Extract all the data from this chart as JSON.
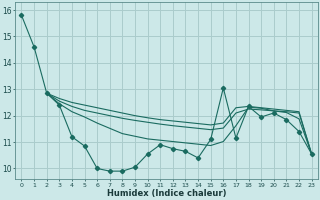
{
  "title": "",
  "xlabel": "Humidex (Indice chaleur)",
  "ylabel": "",
  "background_color": "#cce8e8",
  "grid_color": "#aacccc",
  "line_color": "#1a6b60",
  "xlim": [
    -0.5,
    23.5
  ],
  "ylim": [
    9.6,
    16.3
  ],
  "yticks": [
    10,
    11,
    12,
    13,
    14,
    15,
    16
  ],
  "xticks": [
    0,
    1,
    2,
    3,
    4,
    5,
    6,
    7,
    8,
    9,
    10,
    11,
    12,
    13,
    14,
    15,
    16,
    17,
    18,
    19,
    20,
    21,
    22,
    23
  ],
  "series": [
    {
      "x": [
        0,
        1,
        2,
        3,
        4,
        5,
        6,
        7,
        8,
        9,
        10,
        11,
        12,
        13,
        14,
        15,
        16,
        17,
        18,
        19,
        20,
        21,
        22,
        23
      ],
      "y": [
        15.8,
        14.6,
        12.85,
        12.4,
        11.2,
        10.85,
        10.0,
        9.9,
        9.9,
        10.05,
        10.55,
        10.9,
        10.75,
        10.65,
        10.4,
        11.1,
        13.05,
        11.15,
        12.35,
        11.95,
        12.1,
        11.85,
        11.4,
        10.55
      ],
      "marker": "D",
      "markersize": 2.2
    },
    {
      "x": [
        2,
        3,
        4,
        5,
        6,
        7,
        8,
        9,
        10,
        11,
        12,
        13,
        14,
        15,
        16,
        17,
        18,
        19,
        20,
        21,
        22,
        23
      ],
      "y": [
        12.85,
        12.65,
        12.5,
        12.4,
        12.3,
        12.2,
        12.1,
        12.0,
        11.92,
        11.85,
        11.8,
        11.75,
        11.7,
        11.65,
        11.72,
        12.3,
        12.35,
        12.3,
        12.25,
        12.2,
        12.15,
        10.55
      ],
      "marker": null,
      "markersize": 0
    },
    {
      "x": [
        2,
        3,
        4,
        5,
        6,
        7,
        8,
        9,
        10,
        11,
        12,
        13,
        14,
        15,
        16,
        17,
        18,
        19,
        20,
        21,
        22,
        23
      ],
      "y": [
        12.85,
        12.55,
        12.35,
        12.2,
        12.1,
        12.0,
        11.9,
        11.82,
        11.75,
        11.68,
        11.62,
        11.57,
        11.52,
        11.47,
        11.53,
        12.1,
        12.25,
        12.22,
        12.18,
        12.15,
        12.1,
        10.55
      ],
      "marker": null,
      "markersize": 0
    },
    {
      "x": [
        2,
        3,
        4,
        5,
        6,
        7,
        8,
        9,
        10,
        11,
        12,
        13,
        14,
        15,
        16,
        17,
        18,
        19,
        20,
        21,
        22,
        23
      ],
      "y": [
        12.85,
        12.45,
        12.15,
        11.95,
        11.72,
        11.52,
        11.32,
        11.22,
        11.12,
        11.07,
        11.02,
        10.97,
        10.92,
        10.87,
        11.02,
        11.62,
        12.32,
        12.28,
        12.18,
        12.12,
        11.88,
        10.55
      ],
      "marker": null,
      "markersize": 0
    }
  ]
}
